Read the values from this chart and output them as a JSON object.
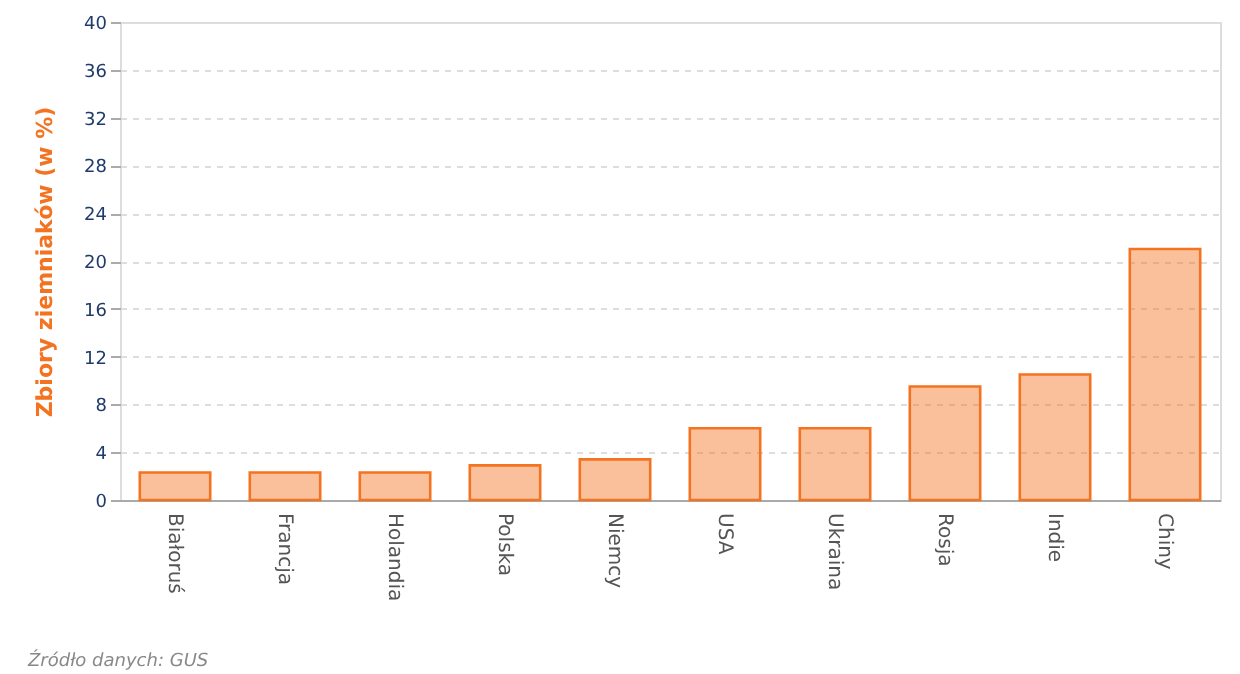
{
  "chart_data": {
    "type": "bar",
    "ylabel": "Zbiory ziemniaków (w %)",
    "categories": [
      "Białoruś",
      "Francja",
      "Holandia",
      "Polska",
      "Niemcy",
      "USA",
      "Ukraina",
      "Rosja",
      "Indie",
      "Chiny"
    ],
    "values": [
      2.3,
      2.3,
      2.3,
      2.9,
      3.4,
      6.0,
      6.0,
      9.5,
      10.5,
      21.0
    ],
    "color": "#f47321",
    "ylim": [
      0,
      40
    ],
    "yticks": [
      0,
      4,
      8,
      12,
      16,
      20,
      24,
      28,
      32,
      36,
      40
    ],
    "grid": "y",
    "annotations": [
      "Źródło danych: GUS"
    ]
  }
}
